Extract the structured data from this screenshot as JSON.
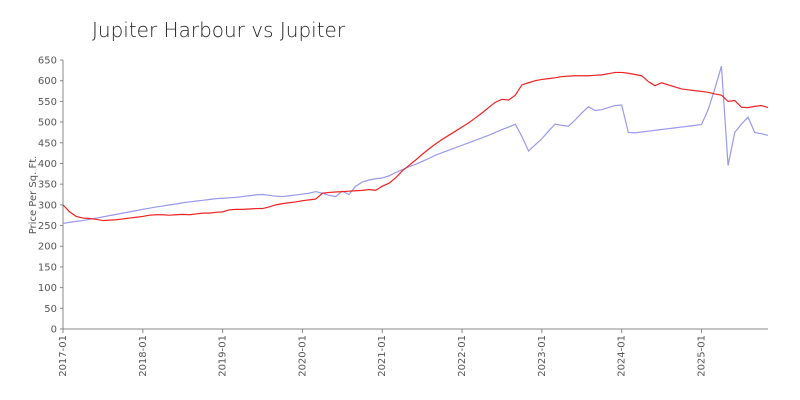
{
  "chart_data": {
    "type": "line",
    "title": "Jupiter Harbour vs Jupiter",
    "ylabel": "Price Per Sq. Ft.",
    "x": [
      "2017-01",
      "2017-02",
      "2017-03",
      "2017-04",
      "2017-05",
      "2017-06",
      "2017-07",
      "2017-08",
      "2017-09",
      "2017-10",
      "2017-11",
      "2017-12",
      "2018-01",
      "2018-02",
      "2018-03",
      "2018-04",
      "2018-05",
      "2018-06",
      "2018-07",
      "2018-08",
      "2018-09",
      "2018-10",
      "2018-11",
      "2018-12",
      "2019-01",
      "2019-02",
      "2019-03",
      "2019-04",
      "2019-05",
      "2019-06",
      "2019-07",
      "2019-08",
      "2019-09",
      "2019-10",
      "2019-11",
      "2019-12",
      "2020-01",
      "2020-02",
      "2020-03",
      "2020-04",
      "2020-05",
      "2020-06",
      "2020-07",
      "2020-08",
      "2020-09",
      "2020-10",
      "2020-11",
      "2020-12",
      "2021-01",
      "2021-02",
      "2021-03",
      "2021-04",
      "2021-05",
      "2021-06",
      "2021-07",
      "2021-08",
      "2021-09",
      "2021-10",
      "2021-11",
      "2021-12",
      "2022-01",
      "2022-02",
      "2022-03",
      "2022-04",
      "2022-05",
      "2022-06",
      "2022-07",
      "2022-08",
      "2022-09",
      "2022-10",
      "2022-11",
      "2022-12",
      "2023-01",
      "2023-02",
      "2023-03",
      "2023-04",
      "2023-05",
      "2023-06",
      "2023-07",
      "2023-08",
      "2023-09",
      "2023-10",
      "2023-11",
      "2023-12",
      "2024-01",
      "2024-02",
      "2024-03",
      "2024-04",
      "2024-05",
      "2024-06",
      "2024-07",
      "2024-08",
      "2024-09",
      "2024-10",
      "2024-11",
      "2024-12",
      "2025-01",
      "2025-02",
      "2025-03",
      "2025-04",
      "2025-05",
      "2025-06",
      "2025-07",
      "2025-08",
      "2025-09",
      "2025-10",
      "2025-11"
    ],
    "series": [
      {
        "color": "#ee2222",
        "values": [
          300,
          283,
          272,
          268,
          267,
          265,
          262,
          263,
          264,
          266,
          268,
          270,
          272,
          275,
          276,
          276,
          275,
          276,
          277,
          276,
          278,
          280,
          280,
          282,
          283,
          288,
          289,
          289,
          290,
          291,
          291,
          295,
          300,
          303,
          305,
          307,
          310,
          312,
          314,
          328,
          330,
          331,
          332,
          333,
          334,
          335,
          337,
          335,
          345,
          352,
          365,
          382,
          395,
          408,
          422,
          435,
          447,
          458,
          468,
          478,
          488,
          498,
          510,
          522,
          535,
          548,
          555,
          553,
          565,
          590,
          595,
          600,
          603,
          605,
          607,
          610,
          611,
          612,
          612,
          612,
          613,
          614,
          617,
          620,
          620,
          618,
          615,
          612,
          598,
          588,
          595,
          590,
          585,
          580,
          578,
          576,
          574,
          572,
          568,
          565,
          550,
          552,
          536,
          535,
          538,
          540,
          535
        ]
      },
      {
        "color": "#9999ee",
        "values": [
          255,
          258,
          260,
          262,
          265,
          268,
          271,
          274,
          277,
          280,
          283,
          286,
          289,
          292,
          295,
          297,
          300,
          302,
          305,
          307,
          309,
          311,
          313,
          315,
          316,
          317,
          318,
          320,
          322,
          324,
          325,
          323,
          321,
          320,
          322,
          324,
          326,
          328,
          332,
          328,
          323,
          320,
          333,
          325,
          345,
          355,
          360,
          363,
          365,
          370,
          378,
          385,
          392,
          398,
          405,
          412,
          420,
          426,
          432,
          438,
          444,
          450,
          456,
          462,
          468,
          475,
          482,
          488,
          495,
          465,
          430,
          445,
          460,
          478,
          495,
          492,
          490,
          505,
          522,
          537,
          528,
          530,
          535,
          540,
          541,
          475,
          474,
          476,
          478,
          480,
          482,
          484,
          486,
          488,
          490,
          492,
          494,
          530,
          580,
          635,
          395,
          475,
          495,
          512,
          475,
          472,
          468
        ]
      }
    ],
    "xticks": [
      "2017-01",
      "2018-01",
      "2019-01",
      "2020-01",
      "2021-01",
      "2022-01",
      "2023-01",
      "2024-01",
      "2025-01"
    ],
    "ylim": [
      0,
      650
    ],
    "yticks": [
      0,
      50,
      100,
      150,
      200,
      250,
      300,
      350,
      400,
      450,
      500,
      550,
      600,
      650
    ]
  }
}
